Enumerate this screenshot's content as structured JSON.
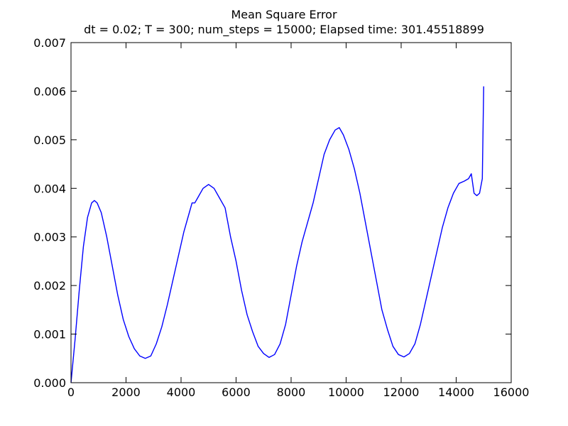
{
  "chart_data": {
    "type": "line",
    "title": "Mean Square Error",
    "subtitle": "dt = 0.02; T = 300; num_steps = 15000; Elapsed time: 301.45518899",
    "xlabel": "",
    "ylabel": "",
    "xlim": [
      0,
      16000
    ],
    "ylim": [
      0,
      0.007
    ],
    "x_ticks": [
      "0",
      "2000",
      "4000",
      "6000",
      "8000",
      "10000",
      "12000",
      "14000",
      "16000"
    ],
    "y_ticks": [
      "0.000",
      "0.001",
      "0.002",
      "0.003",
      "0.004",
      "0.005",
      "0.006",
      "0.007"
    ],
    "x_tick_values": [
      0,
      2000,
      4000,
      6000,
      8000,
      10000,
      12000,
      14000,
      16000
    ],
    "y_tick_values": [
      0,
      0.001,
      0.002,
      0.003,
      0.004,
      0.005,
      0.006,
      0.007
    ],
    "grid": false,
    "series": [
      {
        "color": "#0000ff",
        "x": [
          0,
          150,
          300,
          450,
          600,
          750,
          850,
          950,
          1100,
          1300,
          1500,
          1700,
          1900,
          2100,
          2300,
          2500,
          2700,
          2900,
          3100,
          3300,
          3500,
          3700,
          3900,
          4100,
          4300,
          4400,
          4500,
          4600,
          4800,
          5000,
          5200,
          5400,
          5600,
          5800,
          6000,
          6200,
          6400,
          6600,
          6800,
          7000,
          7200,
          7400,
          7600,
          7800,
          8000,
          8200,
          8400,
          8600,
          8700,
          8800,
          9000,
          9200,
          9400,
          9600,
          9750,
          9900,
          10100,
          10300,
          10500,
          10700,
          10900,
          11100,
          11300,
          11500,
          11700,
          11900,
          12100,
          12300,
          12500,
          12700,
          12900,
          13100,
          13300,
          13500,
          13700,
          13900,
          14100,
          14300,
          14450,
          14550,
          14650,
          14750,
          14850,
          14950,
          15000
        ],
        "y": [
          0,
          0.0009,
          0.0019,
          0.0028,
          0.0034,
          0.0037,
          0.00375,
          0.0037,
          0.0035,
          0.003,
          0.0024,
          0.0018,
          0.0013,
          0.00095,
          0.0007,
          0.00055,
          0.0005,
          0.00055,
          0.0008,
          0.00115,
          0.0016,
          0.0021,
          0.0026,
          0.0031,
          0.0035,
          0.0037,
          0.0037,
          0.0038,
          0.004,
          0.00408,
          0.004,
          0.0038,
          0.0036,
          0.003,
          0.0025,
          0.0019,
          0.0014,
          0.00105,
          0.00075,
          0.0006,
          0.00052,
          0.00058,
          0.0008,
          0.0012,
          0.0018,
          0.0024,
          0.0029,
          0.0033,
          0.0035,
          0.0037,
          0.0042,
          0.0047,
          0.005,
          0.0052,
          0.00525,
          0.0051,
          0.0048,
          0.0044,
          0.0039,
          0.0033,
          0.0027,
          0.0021,
          0.0015,
          0.0011,
          0.00075,
          0.00058,
          0.00053,
          0.0006,
          0.0008,
          0.0012,
          0.0017,
          0.0022,
          0.0027,
          0.0032,
          0.0036,
          0.0039,
          0.0041,
          0.00415,
          0.0042,
          0.0043,
          0.0039,
          0.00385,
          0.0039,
          0.0042,
          0.0061
        ]
      }
    ]
  }
}
